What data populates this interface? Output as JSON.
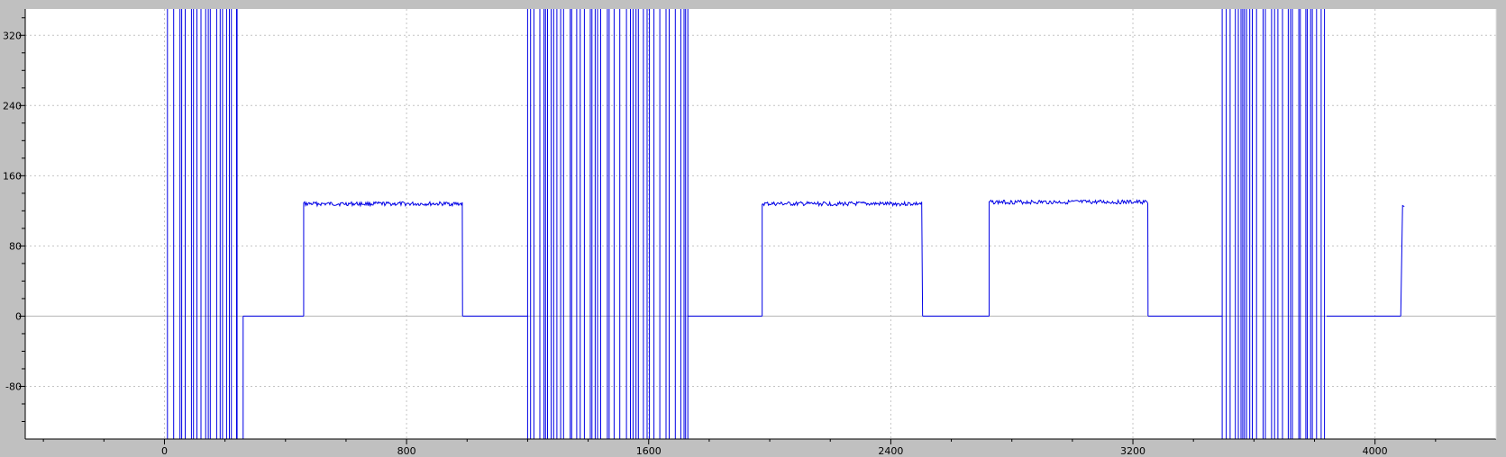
{
  "chart_data": {
    "type": "line",
    "title": "",
    "xlabel": "",
    "ylabel": "",
    "xlim": [
      -460,
      4400
    ],
    "ylim": [
      -140,
      350
    ],
    "x_ticks": [
      0,
      800,
      1600,
      2400,
      3200,
      4000
    ],
    "y_ticks": [
      -80,
      0,
      80,
      160,
      240,
      320
    ],
    "grid": true,
    "legend": "none",
    "colors": {
      "series": "#0000e6",
      "grid": "#c4c4c4",
      "zero_line": "#b4b4b4",
      "plot_background": "#ffffff",
      "frame": "#c0c0c0"
    },
    "series": [
      {
        "segments": [
          {
            "kind": "burst",
            "x": [
              10,
              240
            ],
            "values": [
              -140,
              350
            ]
          },
          {
            "kind": "spike",
            "x": 240,
            "values": [
              -140,
              350
            ]
          },
          {
            "kind": "spike",
            "x": 260,
            "values": [
              -140,
              0
            ]
          },
          {
            "kind": "flat",
            "x": [
              260,
              460
            ],
            "value": 0
          },
          {
            "kind": "plateau",
            "x": [
              460,
              985
            ],
            "value": 128
          },
          {
            "kind": "flat",
            "x": [
              985,
              1200
            ],
            "value": 0
          },
          {
            "kind": "burst",
            "x": [
              1200,
              1730
            ],
            "values": [
              -140,
              350
            ]
          },
          {
            "kind": "flat",
            "x": [
              1730,
              1975
            ],
            "value": 0
          },
          {
            "kind": "plateau",
            "x": [
              1975,
              2505
            ],
            "value": 128
          },
          {
            "kind": "flat",
            "x": [
              2505,
              2725
            ],
            "value": 0
          },
          {
            "kind": "plateau",
            "x": [
              2725,
              3250
            ],
            "value": 130
          },
          {
            "kind": "flat",
            "x": [
              3250,
              3495
            ],
            "value": 0
          },
          {
            "kind": "burst",
            "x": [
              3495,
              3840
            ],
            "values": [
              -140,
              350
            ]
          },
          {
            "kind": "flat",
            "x": [
              3840,
              4085
            ],
            "value": 0
          },
          {
            "kind": "rise",
            "x": 4085,
            "value": 126
          }
        ]
      }
    ]
  }
}
